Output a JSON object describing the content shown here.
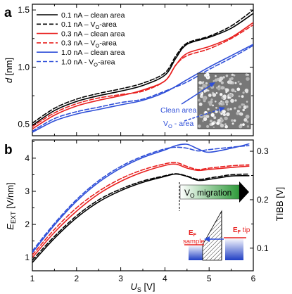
{
  "chart_data": [
    {
      "panel": "a",
      "type": "line",
      "ylabel": "d [nm]",
      "ylim": [
        0.4,
        1.55
      ],
      "yticks": [
        "0.5",
        "1.0",
        "1.5"
      ],
      "xlim": [
        1,
        6
      ],
      "colors": {
        "0.1 nA": "#000000",
        "0.3 nA": "#e8201f",
        "1.0 nA": "#2f4fd8"
      },
      "series": [
        {
          "name": "0.1 nA – clean area",
          "color": "#000000",
          "dash": false,
          "x": [
            1.0,
            1.5,
            2.0,
            2.5,
            3.0,
            3.5,
            4.0,
            4.25,
            4.5,
            5.0,
            5.5,
            6.0
          ],
          "y": [
            0.49,
            0.62,
            0.7,
            0.75,
            0.79,
            0.84,
            0.93,
            1.08,
            1.2,
            1.26,
            1.34,
            1.47
          ]
        },
        {
          "name": "0.1 nA – VO-area",
          "color": "#000000",
          "dash": true,
          "x": [
            1.0,
            1.5,
            2.0,
            2.5,
            3.0,
            3.5,
            4.0,
            4.25,
            4.5,
            5.0,
            5.5,
            6.0
          ],
          "y": [
            0.51,
            0.64,
            0.72,
            0.77,
            0.81,
            0.86,
            0.95,
            1.1,
            1.21,
            1.27,
            1.36,
            1.5
          ]
        },
        {
          "name": "0.3 nA – clean area",
          "color": "#e8201f",
          "dash": false,
          "x": [
            1.0,
            1.5,
            2.0,
            2.5,
            3.0,
            3.5,
            4.0,
            4.25,
            4.5,
            5.0,
            5.5,
            6.0
          ],
          "y": [
            0.46,
            0.58,
            0.66,
            0.71,
            0.75,
            0.8,
            0.88,
            1.02,
            1.12,
            1.18,
            1.26,
            1.39
          ]
        },
        {
          "name": "0.3 nA – VO-area",
          "color": "#e8201f",
          "dash": true,
          "x": [
            1.0,
            1.5,
            2.0,
            2.5,
            3.0,
            3.5,
            4.0,
            4.25,
            4.5,
            5.0,
            5.5,
            6.0
          ],
          "y": [
            0.48,
            0.6,
            0.68,
            0.73,
            0.76,
            0.79,
            0.88,
            1.02,
            1.1,
            1.16,
            1.25,
            1.37
          ]
        },
        {
          "name": "1.0 nA – clean area",
          "color": "#2f4fd8",
          "dash": false,
          "x": [
            1.0,
            1.5,
            2.0,
            2.5,
            3.0,
            3.5,
            4.0,
            4.5,
            5.0,
            5.5,
            6.0
          ],
          "y": [
            0.43,
            0.53,
            0.59,
            0.63,
            0.67,
            0.71,
            0.78,
            0.89,
            1.0,
            1.1,
            1.2
          ]
        },
        {
          "name": "1.0 nA - VO-area",
          "color": "#2f4fd8",
          "dash": true,
          "x": [
            1.0,
            1.5,
            2.0,
            2.5,
            3.0,
            3.5,
            4.0,
            4.5,
            5.0,
            5.5,
            6.0
          ],
          "y": [
            0.44,
            0.55,
            0.61,
            0.65,
            0.69,
            0.72,
            0.79,
            0.87,
            0.98,
            1.08,
            1.19
          ]
        }
      ],
      "inset": {
        "clean_label": "Clean area",
        "vo_label": "VO - area"
      }
    },
    {
      "panel": "b",
      "type": "line",
      "xlabel": "US [V]",
      "ylabel": "EEXT [V/nm]",
      "y2label": "TIBB [V]",
      "xlim": [
        1,
        6
      ],
      "ylim": [
        0.6,
        4.55
      ],
      "y2lim": [
        0.0533,
        0.3233
      ],
      "xticks": [
        "1",
        "2",
        "3",
        "4",
        "5",
        "6"
      ],
      "yticks": [
        "1",
        "2",
        "3",
        "4"
      ],
      "y2ticks": [
        "0.1",
        "0.2",
        "0.3"
      ],
      "series": [
        {
          "name": "0.1 nA – clean area",
          "color": "#000000",
          "dash": false,
          "x": [
            1.0,
            1.5,
            2.0,
            2.5,
            3.0,
            3.5,
            4.0,
            4.25,
            4.5,
            4.75,
            5.0,
            5.5,
            5.9
          ],
          "y": [
            0.85,
            1.58,
            2.2,
            2.68,
            3.02,
            3.27,
            3.45,
            3.52,
            3.45,
            3.33,
            3.36,
            3.46,
            3.47
          ]
        },
        {
          "name": "0.1 nA – VO-area",
          "color": "#000000",
          "dash": true,
          "x": [
            1.0,
            1.5,
            2.0,
            2.5,
            3.0,
            3.5,
            4.0,
            4.25,
            4.5,
            4.75,
            5.0,
            5.5,
            5.9
          ],
          "y": [
            0.92,
            1.64,
            2.26,
            2.74,
            3.07,
            3.31,
            3.47,
            3.53,
            3.46,
            3.36,
            3.4,
            3.5,
            3.52
          ]
        },
        {
          "name": "0.3 nA – clean area",
          "color": "#e8201f",
          "dash": false,
          "x": [
            1.0,
            1.5,
            2.0,
            2.5,
            3.0,
            3.5,
            4.0,
            4.25,
            4.5,
            4.75,
            5.0,
            5.5,
            5.9
          ],
          "y": [
            1.0,
            1.76,
            2.4,
            2.92,
            3.3,
            3.58,
            3.78,
            3.82,
            3.7,
            3.63,
            3.66,
            3.72,
            3.76
          ]
        },
        {
          "name": "0.3 nA – VO-area",
          "color": "#e8201f",
          "dash": true,
          "x": [
            1.0,
            1.5,
            2.0,
            2.5,
            3.0,
            3.5,
            4.0,
            4.25,
            4.5,
            4.75,
            5.0,
            5.5,
            5.9
          ],
          "y": [
            1.08,
            1.85,
            2.5,
            3.0,
            3.38,
            3.65,
            3.83,
            3.87,
            3.75,
            3.66,
            3.7,
            3.77,
            3.8
          ]
        },
        {
          "name": "1.0 nA – clean area",
          "color": "#2f4fd8",
          "dash": false,
          "x": [
            1.0,
            1.5,
            2.0,
            2.5,
            3.0,
            3.5,
            4.0,
            4.25,
            4.5,
            4.75,
            5.0,
            5.5,
            5.9
          ],
          "y": [
            1.15,
            1.98,
            2.7,
            3.27,
            3.7,
            4.02,
            4.25,
            4.38,
            4.42,
            4.28,
            4.18,
            4.3,
            4.43
          ]
        },
        {
          "name": "1.0 nA - VO-area",
          "color": "#2f4fd8",
          "dash": true,
          "x": [
            1.0,
            1.5,
            2.0,
            2.5,
            3.0,
            3.5,
            4.0,
            4.25,
            4.5,
            4.75,
            5.0,
            5.5,
            5.9
          ],
          "y": [
            1.2,
            2.03,
            2.75,
            3.32,
            3.75,
            4.06,
            4.28,
            4.33,
            4.3,
            4.22,
            4.26,
            4.33,
            4.38
          ]
        }
      ],
      "annotation": {
        "label": "VO migration",
        "from_x": 4.3,
        "to_x": 5.9
      },
      "inset": {
        "sample_label_1": "EF",
        "sample_label_2": "sample",
        "tip_label": "EF tip"
      }
    }
  ]
}
